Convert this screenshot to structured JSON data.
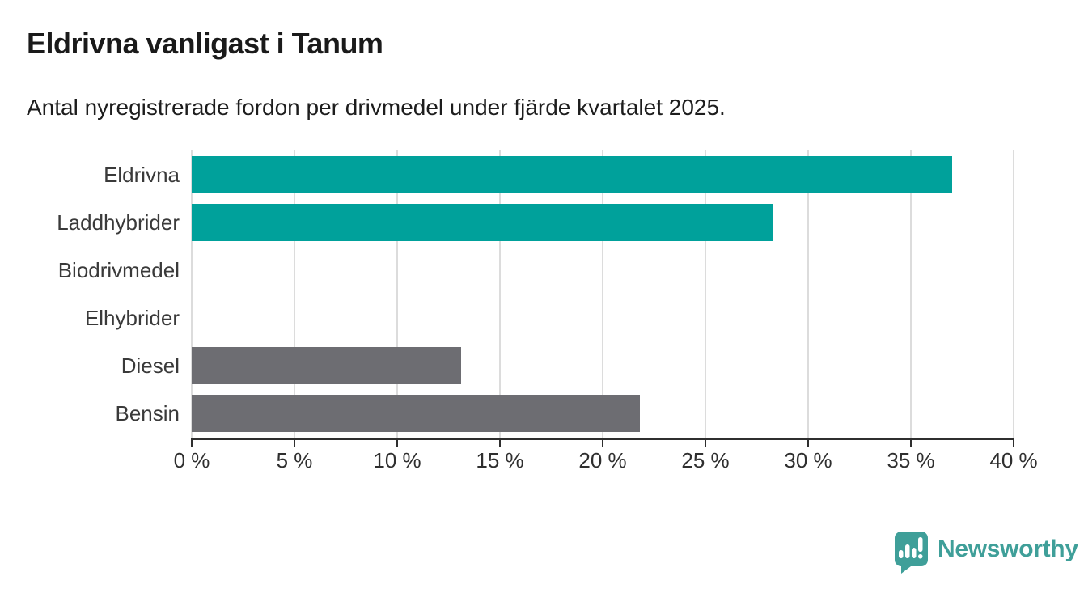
{
  "header": {
    "title": "Eldrivna vanligast i Tanum",
    "subtitle": "Antal nyregistrerade fordon per drivmedel under fjärde kvartalet 2025."
  },
  "chart_data": {
    "type": "bar",
    "orientation": "horizontal",
    "title": "Eldrivna vanligast i Tanum",
    "subtitle": "Antal nyregistrerade fordon per drivmedel under fjärde kvartalet 2025.",
    "categories": [
      "Eldrivna",
      "Laddhybrider",
      "Biodrivmedel",
      "Elhybrider",
      "Diesel",
      "Bensin"
    ],
    "values": [
      37.0,
      28.3,
      0,
      0,
      13.1,
      21.8
    ],
    "unit": "%",
    "xlim": [
      0,
      40
    ],
    "x_ticks": [
      {
        "value": 0,
        "label": "0 %"
      },
      {
        "value": 5,
        "label": "5 %"
      },
      {
        "value": 10,
        "label": "10 %"
      },
      {
        "value": 15,
        "label": "15 %"
      },
      {
        "value": 20,
        "label": "20 %"
      },
      {
        "value": 25,
        "label": "25 %"
      },
      {
        "value": 30,
        "label": "30 %"
      },
      {
        "value": 35,
        "label": "35 %"
      },
      {
        "value": 40,
        "label": "40 %"
      }
    ],
    "bar_colors": [
      "#00a19b",
      "#00a19b",
      "#00a19b",
      "#00a19b",
      "#6d6d72",
      "#6d6d72"
    ],
    "grid": true,
    "grid_color": "#dcdcdc",
    "axis_color": "#2f2f2f",
    "category_label_color": "#3a3a3a",
    "legend": "none"
  },
  "branding": {
    "logo_text": "Newsworthy",
    "logo_color": "#3f9f99",
    "logo_icon": "newsworthy-speech-bubble-bar-chart-icon"
  }
}
